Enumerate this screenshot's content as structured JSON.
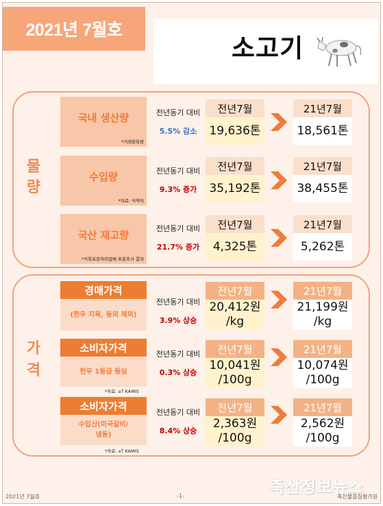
{
  "header": {
    "issue": "2021년 7월호",
    "title": "소고기"
  },
  "quantity_section": {
    "label": [
      "물",
      "량"
    ],
    "rows": [
      {
        "category": "국내 생산량",
        "note": "*거래정육량",
        "yoy_label": "전년동기 대비",
        "yoy_value": "5.5% 감소",
        "prev_head": "전년7월",
        "prev_value": "19,636톤",
        "cur_head": "21년7월",
        "cur_value": "18,561톤"
      },
      {
        "category": "수입량",
        "note": "*자료: 식약처",
        "yoy_label": "전년동기 대비",
        "yoy_value": "9.3% 증가",
        "prev_head": "전년7월",
        "prev_value": "35,192톤",
        "cur_head": "21년7월",
        "cur_value": "38,455톤"
      },
      {
        "category": "국산 재고량",
        "note": "*식육포장처리업체 표본조사 결과",
        "yoy_label": "전년동기 대비",
        "yoy_value": "21.7% 증가",
        "prev_head": "전년7월",
        "prev_value": "4,325톤",
        "cur_head": "21년7월",
        "cur_value": "5,262톤"
      }
    ]
  },
  "price_section": {
    "label": [
      "가",
      "격"
    ],
    "rows": [
      {
        "category": "경매가격",
        "sub": "(한우 지육, 등외 제외)",
        "note": "",
        "yoy_label": "전년동기 대비",
        "yoy_value": "3.9% 상승",
        "prev_head": "전년7월",
        "prev_value_1": "20,412원",
        "prev_value_2": "/kg",
        "cur_head": "21년7월",
        "cur_value_1": "21,199원",
        "cur_value_2": "/kg"
      },
      {
        "category": "소비자가격",
        "sub": "한우 1등급 등심",
        "note": "*자료: aT KAMIS",
        "yoy_label": "전년동기 대비",
        "yoy_value": "0.3% 상승",
        "prev_head": "전년7월",
        "prev_value_1": "10,041원",
        "prev_value_2": "/100g",
        "cur_head": "21년7월",
        "cur_value_1": "10,074원",
        "cur_value_2": "/100g"
      },
      {
        "category": "소비자가격",
        "sub_1": "수입산(미국갈비/",
        "sub_2": "냉동)",
        "note": "*자료: aT KAMIS",
        "yoy_label": "전년동기 대비",
        "yoy_value": "8.4% 상승",
        "prev_head": "전년7월",
        "prev_value_1": "2,363원",
        "prev_value_2": "/100g",
        "cur_head": "21년7월",
        "cur_value_1": "2,562원",
        "cur_value_2": "/100g"
      }
    ]
  },
  "footer": {
    "left": "2021년 7월호",
    "page": "-1-",
    "right": "축산물품질평가원",
    "watermark": "축산정보뉴스"
  },
  "colors": {
    "decrease": "#3b6fc4",
    "increase": "#c00000",
    "accent": "#ed7d31",
    "light_accent": "#f8c6a8",
    "prev_fill": "#fff2cc"
  },
  "icons": {
    "cow": "cow-icon",
    "arrow": "right-chevron-arrow-icon"
  }
}
